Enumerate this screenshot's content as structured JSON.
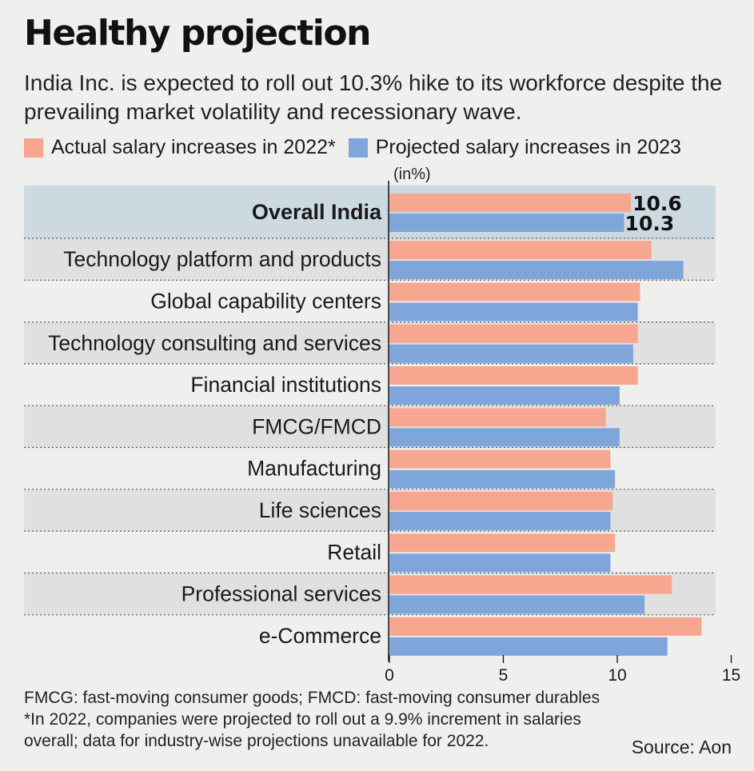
{
  "title": "Healthy projection",
  "subtitle": "India Inc. is expected to roll out 10.3% hike to its workforce despite the prevailing market volatility and recessionary wave.",
  "unit_label": "(in%)",
  "footnotes": [
    "FMCG: fast-moving consumer goods; FMCD: fast-moving consumer durables",
    "*In 2022, companies were projected to roll out a 9.9% increment in salaries overall; data for industry-wise projections unavailable for 2022."
  ],
  "source": "Source: Aon",
  "colors": {
    "actual": "#f7a68f",
    "projected": "#7fa6db",
    "highlight_row": "#ccd9e1",
    "band": "#e0e0e0",
    "background": "#efefee"
  },
  "chart_data": {
    "type": "bar",
    "orientation": "horizontal",
    "title": "Healthy projection",
    "xlabel": "",
    "ylabel": "",
    "unit": "%",
    "xlim": [
      0,
      15
    ],
    "xticks": [
      0,
      5,
      10,
      15
    ],
    "categories": [
      "Overall India",
      "Technology platform and products",
      "Global capability centers",
      "Technology consulting and services",
      "Financial institutions",
      "FMCG/FMCD",
      "Manufacturing",
      "Life sciences",
      "Retail",
      "Professional services",
      "e-Commerce"
    ],
    "series": [
      {
        "name": "Actual salary increases in 2022*",
        "color": "#f7a68f",
        "values": [
          10.6,
          11.5,
          11.0,
          10.9,
          10.9,
          9.5,
          9.7,
          9.8,
          9.9,
          12.4,
          13.7
        ]
      },
      {
        "name": "Projected salary increases in 2023",
        "color": "#7fa6db",
        "values": [
          10.3,
          12.9,
          10.9,
          10.7,
          10.1,
          10.1,
          9.9,
          9.7,
          9.7,
          11.2,
          12.2
        ]
      }
    ],
    "highlight_category": "Overall India",
    "data_labels": [
      "10.6",
      "10.3"
    ]
  }
}
